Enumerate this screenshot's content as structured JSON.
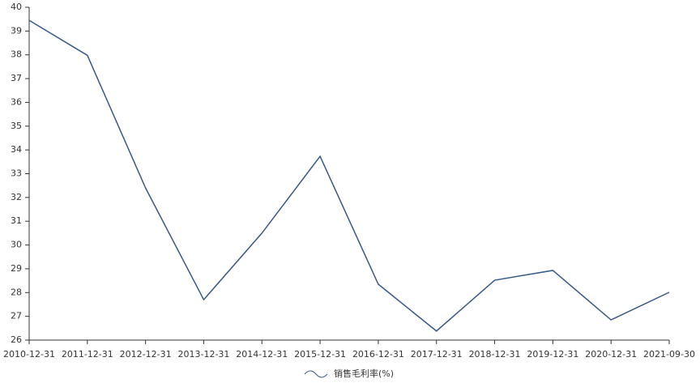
{
  "chart_data": {
    "type": "line",
    "categories": [
      "2010-12-31",
      "2011-12-31",
      "2012-12-31",
      "2013-12-31",
      "2014-12-31",
      "2015-12-31",
      "2016-12-31",
      "2017-12-31",
      "2018-12-31",
      "2019-12-31",
      "2020-12-31",
      "2021-09-30"
    ],
    "series": [
      {
        "name": "销售毛利率(%)",
        "color": "#36598a",
        "values": [
          39.45,
          37.98,
          32.4,
          27.7,
          30.5,
          33.73,
          28.35,
          26.38,
          28.52,
          28.93,
          26.85,
          28.01
        ]
      }
    ],
    "ylim": [
      26,
      40
    ],
    "yticks": [
      26,
      27,
      28,
      29,
      30,
      31,
      32,
      33,
      34,
      35,
      36,
      37,
      38,
      39,
      40
    ],
    "grid": false,
    "legend": "bottom"
  }
}
